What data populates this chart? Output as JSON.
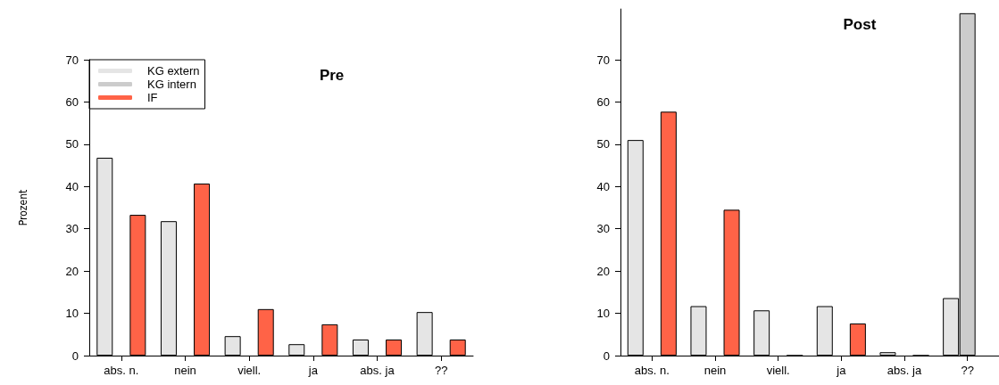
{
  "chart_data": [
    {
      "type": "bar",
      "title": "Pre",
      "ylabel": "Prozent",
      "categories": [
        "abs. n.",
        "nein",
        "viell.",
        "ja",
        "abs. ja",
        "??"
      ],
      "series": [
        {
          "name": "KG extern",
          "color": "#e5e5e5",
          "values": [
            46.8,
            31.8,
            4.6,
            2.7,
            3.8,
            10.3
          ]
        },
        {
          "name": "KG intern",
          "color": "#cccccc",
          "values": [
            null,
            null,
            null,
            null,
            null,
            null
          ]
        },
        {
          "name": "IF",
          "color": "#ff6347",
          "values": [
            33.3,
            40.7,
            11.0,
            7.4,
            3.8,
            3.8
          ]
        }
      ],
      "ylim": [
        0,
        70
      ],
      "yticks": [
        0,
        10,
        20,
        30,
        40,
        50,
        60,
        70
      ],
      "legend": "top left"
    },
    {
      "type": "bar",
      "title": "Post",
      "categories": [
        "abs. n.",
        "nein",
        "viell.",
        "ja",
        "abs. ja",
        "??"
      ],
      "series": [
        {
          "color": "#e5e5e5",
          "values": [
            51.0,
            11.7,
            10.7,
            11.7,
            0.8,
            13.6
          ]
        },
        {
          "color": "#cccccc",
          "values": [
            null,
            null,
            null,
            null,
            null,
            81
          ]
        },
        {
          "color": "#ff6347",
          "values": [
            57.7,
            34.5,
            0,
            7.6,
            0,
            null
          ]
        }
      ],
      "ylim": [
        0,
        82
      ],
      "yticks": [
        0,
        10,
        20,
        30,
        40,
        50,
        60,
        70
      ],
      "legend": false
    }
  ]
}
